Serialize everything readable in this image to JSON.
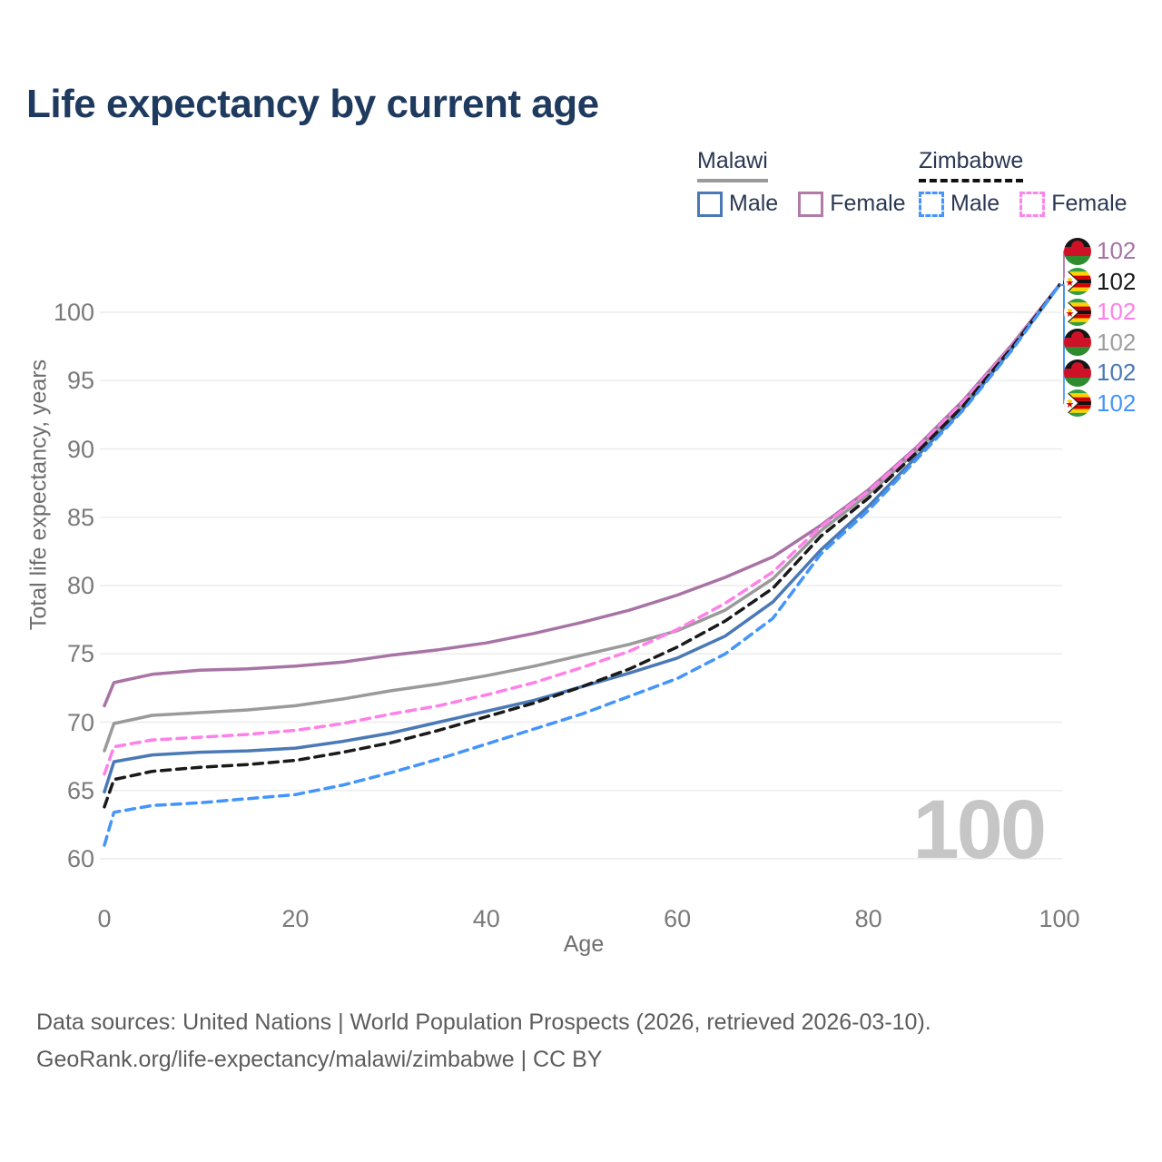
{
  "title": "Life expectancy by current age",
  "legend": {
    "groups": [
      {
        "country": "Malawi",
        "underline_style": "solid",
        "underline_color": "#9a9a9a",
        "entries": [
          {
            "label": "Male",
            "color": "#4a79b6",
            "style": "solid"
          },
          {
            "label": "Female",
            "color": "#b07ca7",
            "style": "solid"
          }
        ]
      },
      {
        "country": "Zimbabwe",
        "underline_style": "dashed",
        "underline_color": "#111111",
        "entries": [
          {
            "label": "Male",
            "color": "#4495fb",
            "style": "dashed"
          },
          {
            "label": "Female",
            "color": "#fb86e8",
            "style": "dashed"
          }
        ]
      }
    ]
  },
  "watermark": "100",
  "end_labels": [
    {
      "series": "Malawi Female",
      "flag": "malawi",
      "value": "102",
      "color": "#a873a5"
    },
    {
      "series": "Zimbabwe",
      "flag": "zimbabwe",
      "value": "102",
      "color": "#1a1a1a"
    },
    {
      "series": "Zimbabwe Female",
      "flag": "zimbabwe",
      "value": "102",
      "color": "#ff80e8"
    },
    {
      "series": "Malawi",
      "flag": "malawi",
      "value": "102",
      "color": "#9e9e9e"
    },
    {
      "series": "Malawi Male",
      "flag": "malawi",
      "value": "102",
      "color": "#4a79b6"
    },
    {
      "series": "Zimbabwe Male",
      "flag": "zimbabwe",
      "value": "102",
      "color": "#4495fb"
    }
  ],
  "footer": {
    "line1": "Data sources: United Nations | World Population Prospects (2026, retrieved 2026-03-10).",
    "line2": "GeoRank.org/life-expectancy/malawi/zimbabwe | CC BY"
  },
  "chart_data": {
    "type": "line",
    "title": "Life expectancy by current age",
    "xlabel": "Age",
    "ylabel": "Total life expectancy, years",
    "x_ticks": [
      0,
      20,
      40,
      60,
      80,
      100
    ],
    "y_ticks": [
      60,
      65,
      70,
      75,
      80,
      85,
      90,
      95,
      100
    ],
    "xlim": [
      0,
      100
    ],
    "ylim": [
      59,
      103.5
    ],
    "grid": "horizontal",
    "legend_position": "top-right",
    "x": [
      0,
      1,
      5,
      10,
      15,
      20,
      25,
      30,
      35,
      40,
      45,
      50,
      55,
      60,
      65,
      70,
      75,
      80,
      85,
      90,
      95,
      100
    ],
    "series": [
      {
        "name": "Malawi Female",
        "country": "Malawi",
        "sex": "Female",
        "style": "solid",
        "color": "#a873a5",
        "values": [
          71.2,
          72.9,
          73.5,
          73.8,
          73.9,
          74.1,
          74.4,
          74.9,
          75.3,
          75.8,
          76.5,
          77.3,
          78.2,
          79.3,
          80.6,
          82.1,
          84.4,
          87.0,
          90.1,
          93.6,
          97.6,
          102
        ]
      },
      {
        "name": "Malawi",
        "country": "Malawi",
        "sex": "Both",
        "style": "solid",
        "color": "#9a9a9a",
        "values": [
          67.9,
          69.9,
          70.5,
          70.7,
          70.9,
          71.2,
          71.7,
          72.3,
          72.8,
          73.4,
          74.1,
          74.9,
          75.7,
          76.7,
          78.2,
          80.5,
          84.0,
          86.7,
          89.8,
          93.3,
          97.4,
          102
        ]
      },
      {
        "name": "Malawi Male",
        "country": "Malawi",
        "sex": "Male",
        "style": "solid",
        "color": "#4a79b6",
        "values": [
          64.9,
          67.1,
          67.6,
          67.8,
          67.9,
          68.1,
          68.6,
          69.2,
          70.0,
          70.8,
          71.6,
          72.6,
          73.6,
          74.7,
          76.3,
          78.8,
          82.6,
          85.8,
          89.4,
          93.0,
          97.3,
          102
        ]
      },
      {
        "name": "Zimbabwe Female",
        "country": "Zimbabwe",
        "sex": "Female",
        "style": "dashed",
        "color": "#ff80e8",
        "values": [
          66.2,
          68.2,
          68.7,
          68.9,
          69.1,
          69.4,
          69.9,
          70.6,
          71.2,
          72.0,
          72.9,
          74.0,
          75.2,
          76.8,
          78.7,
          81.0,
          84.3,
          86.9,
          90.0,
          93.5,
          97.5,
          102
        ]
      },
      {
        "name": "Zimbabwe",
        "country": "Zimbabwe",
        "sex": "Both",
        "style": "dashed",
        "color": "#1a1a1a",
        "values": [
          63.8,
          65.8,
          66.4,
          66.7,
          66.9,
          67.2,
          67.8,
          68.5,
          69.4,
          70.4,
          71.4,
          72.6,
          73.9,
          75.5,
          77.4,
          79.8,
          83.6,
          86.4,
          89.7,
          93.2,
          97.4,
          102
        ]
      },
      {
        "name": "Zimbabwe Male",
        "country": "Zimbabwe",
        "sex": "Male",
        "style": "dashed",
        "color": "#4495fb",
        "values": [
          61.0,
          63.4,
          63.9,
          64.1,
          64.4,
          64.7,
          65.4,
          66.3,
          67.3,
          68.4,
          69.5,
          70.6,
          71.9,
          73.2,
          75.0,
          77.6,
          82.3,
          85.5,
          89.2,
          92.9,
          97.2,
          102
        ]
      }
    ],
    "end_value_labels": [
      102,
      102,
      102,
      102,
      102,
      102
    ]
  }
}
